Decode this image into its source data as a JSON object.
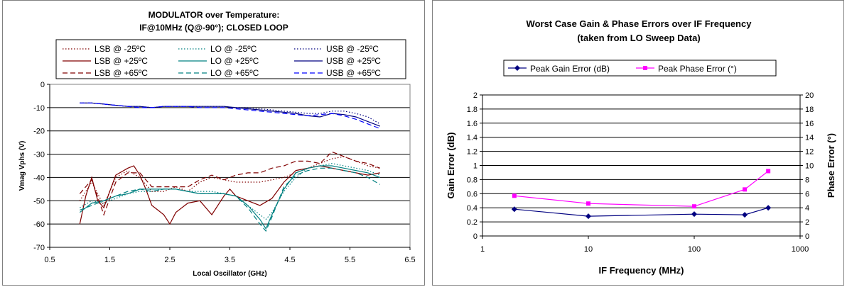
{
  "chart_data": [
    {
      "type": "line",
      "title": "MODULATOR over Temperature:",
      "subtitle": "IF@10MHz (Q@-90°); CLOSED LOOP",
      "xlabel": "Local Oscillator (GHz)",
      "ylabel": "Vmag Vphs (V)",
      "xlim": [
        0.5,
        6.5
      ],
      "ylim": [
        -70,
        0
      ],
      "xticks": [
        0.5,
        1.5,
        2.5,
        3.5,
        4.5,
        5.5,
        6.5
      ],
      "yticks": [
        0,
        -10,
        -20,
        -30,
        -40,
        -50,
        -60,
        -70
      ],
      "grid": "horizontal",
      "legend": "top",
      "series": [
        {
          "name": "LSB @ -25ºC",
          "color": "#800000",
          "dash": "dotted",
          "x": [
            1.0,
            1.2,
            1.4,
            1.6,
            1.8,
            2.0,
            2.2,
            2.4,
            2.6,
            2.8,
            3.0,
            3.2,
            3.4,
            3.6,
            3.8,
            4.0,
            4.2,
            4.4,
            4.6,
            4.8,
            5.0,
            5.2,
            5.4,
            5.6,
            5.8,
            6.0
          ],
          "y": [
            -50,
            -42,
            -52,
            -40,
            -37,
            -40,
            -46,
            -46,
            -44,
            -46,
            -42,
            -40,
            -41,
            -42,
            -42,
            -42,
            -41,
            -40,
            -38,
            -36,
            -34,
            -32,
            -31,
            -33,
            -35,
            -36
          ]
        },
        {
          "name": "LO @ -25ºC",
          "color": "#008080",
          "dash": "dotted",
          "x": [
            1.0,
            1.2,
            1.4,
            1.6,
            1.8,
            2.0,
            2.2,
            2.4,
            2.6,
            2.8,
            3.0,
            3.2,
            3.4,
            3.6,
            3.8,
            4.0,
            4.1,
            4.2,
            4.4,
            4.6,
            4.8,
            5.0,
            5.2,
            5.4,
            5.6,
            5.8,
            6.0
          ],
          "y": [
            -53,
            -50,
            -51,
            -49,
            -47,
            -46,
            -46,
            -45,
            -45,
            -46,
            -46,
            -46,
            -47,
            -48,
            -52,
            -56,
            -58,
            -55,
            -46,
            -40,
            -36,
            -35,
            -34,
            -35,
            -36,
            -37,
            -39
          ]
        },
        {
          "name": "USB @ -25ºC",
          "color": "#000080",
          "dash": "dotted",
          "x": [
            1.0,
            1.2,
            1.4,
            1.6,
            1.8,
            2.0,
            2.2,
            2.4,
            2.6,
            2.8,
            3.0,
            3.2,
            3.4,
            3.6,
            3.8,
            4.0,
            4.2,
            4.4,
            4.6,
            4.8,
            5.0,
            5.2,
            5.4,
            5.6,
            5.8,
            6.0
          ],
          "y": [
            -8,
            -8,
            -8.5,
            -9,
            -9.5,
            -9.5,
            -10,
            -9.5,
            -9.5,
            -9.5,
            -9.5,
            -9.5,
            -9.5,
            -10,
            -10,
            -10.5,
            -11,
            -11.5,
            -12,
            -12.5,
            -12.5,
            -11.5,
            -11.5,
            -12.5,
            -14,
            -17
          ]
        },
        {
          "name": "LSB @ +25ºC",
          "color": "#800000",
          "dash": "solid",
          "x": [
            1.0,
            1.1,
            1.2,
            1.3,
            1.4,
            1.5,
            1.6,
            1.8,
            1.9,
            2.0,
            2.1,
            2.2,
            2.3,
            2.4,
            2.5,
            2.6,
            2.8,
            3.0,
            3.2,
            3.4,
            3.5,
            3.6,
            3.8,
            4.0,
            4.2,
            4.4,
            4.6,
            4.8,
            5.0,
            5.2,
            5.4,
            5.6,
            5.8,
            6.0
          ],
          "y": [
            -60,
            -48,
            -40,
            -50,
            -53,
            -46,
            -39,
            -36,
            -35,
            -39,
            -45,
            -52,
            -54,
            -56,
            -60,
            -55,
            -51,
            -50,
            -56,
            -48,
            -45,
            -48,
            -50,
            -52,
            -49,
            -42,
            -37,
            -36,
            -35,
            -36,
            -37,
            -38,
            -39,
            -38
          ]
        },
        {
          "name": "LO @ +25ºC",
          "color": "#008080",
          "dash": "solid",
          "x": [
            1.0,
            1.2,
            1.4,
            1.6,
            1.8,
            2.0,
            2.2,
            2.4,
            2.6,
            2.8,
            3.0,
            3.2,
            3.4,
            3.6,
            3.8,
            4.0,
            4.1,
            4.2,
            4.4,
            4.6,
            4.8,
            5.0,
            5.2,
            5.4,
            5.6,
            5.8,
            6.0
          ],
          "y": [
            -55,
            -51,
            -50,
            -48,
            -47,
            -45,
            -45,
            -45,
            -45,
            -46,
            -47,
            -47,
            -47,
            -48,
            -52,
            -58,
            -62,
            -56,
            -45,
            -38,
            -36,
            -35,
            -35,
            -36,
            -37,
            -38,
            -40
          ]
        },
        {
          "name": "USB @ +25ºC",
          "color": "#000080",
          "dash": "solid",
          "x": [
            1.0,
            1.2,
            1.4,
            1.6,
            1.8,
            2.0,
            2.2,
            2.4,
            2.6,
            2.8,
            3.0,
            3.2,
            3.4,
            3.6,
            3.8,
            4.0,
            4.2,
            4.4,
            4.6,
            4.8,
            5.0,
            5.2,
            5.4,
            5.6,
            5.8,
            6.0
          ],
          "y": [
            -8,
            -8,
            -8.5,
            -9,
            -9.5,
            -9.5,
            -10,
            -9.5,
            -9.5,
            -9.5,
            -9.5,
            -9.5,
            -9.5,
            -10,
            -10.5,
            -11,
            -11.5,
            -12,
            -12.5,
            -13.5,
            -14,
            -12.5,
            -13,
            -14,
            -16,
            -18
          ]
        },
        {
          "name": "LSB @ +65ºC",
          "color": "#800000",
          "dash": "dashed",
          "x": [
            1.0,
            1.2,
            1.4,
            1.6,
            1.8,
            2.0,
            2.2,
            2.4,
            2.6,
            2.8,
            3.0,
            3.2,
            3.4,
            3.6,
            3.8,
            4.0,
            4.2,
            4.4,
            4.6,
            4.8,
            5.0,
            5.2,
            5.4,
            5.6,
            5.8,
            6.0
          ],
          "y": [
            -47,
            -41,
            -56,
            -42,
            -38,
            -38,
            -44,
            -44,
            -44,
            -44,
            -41,
            -39,
            -41,
            -39,
            -38,
            -38,
            -36,
            -35,
            -33,
            -33,
            -34,
            -29,
            -31,
            -33,
            -34,
            -36
          ]
        },
        {
          "name": "LO @ +65ºC",
          "color": "#008080",
          "dash": "dashed",
          "x": [
            1.0,
            1.2,
            1.4,
            1.6,
            1.8,
            2.0,
            2.2,
            2.4,
            2.6,
            2.8,
            3.0,
            3.2,
            3.4,
            3.6,
            3.8,
            4.0,
            4.1,
            4.2,
            4.4,
            4.6,
            4.8,
            5.0,
            5.2,
            5.4,
            5.6,
            5.8,
            6.0
          ],
          "y": [
            -54,
            -52,
            -50,
            -48,
            -46,
            -45,
            -46,
            -45,
            -45,
            -46,
            -47,
            -47,
            -47,
            -48,
            -53,
            -60,
            -63,
            -57,
            -44,
            -39,
            -37,
            -36,
            -36,
            -37,
            -38,
            -40,
            -43
          ]
        },
        {
          "name": "USB @ +65ºC",
          "color": "#0000ff",
          "dash": "dashed",
          "x": [
            1.0,
            1.2,
            1.4,
            1.6,
            1.8,
            2.0,
            2.2,
            2.4,
            2.6,
            2.8,
            3.0,
            3.2,
            3.4,
            3.6,
            3.8,
            4.0,
            4.2,
            4.4,
            4.6,
            4.8,
            5.0,
            5.2,
            5.4,
            5.6,
            5.8,
            6.0
          ],
          "y": [
            -8,
            -8,
            -8.5,
            -9,
            -9.5,
            -10,
            -10,
            -9.5,
            -9.5,
            -9.5,
            -10,
            -10,
            -10,
            -10.5,
            -11,
            -11.5,
            -12,
            -12.5,
            -13,
            -13.5,
            -13,
            -12.5,
            -13.5,
            -15,
            -17,
            -19
          ]
        }
      ]
    },
    {
      "type": "line",
      "title": "Worst Case Gain & Phase Errors over  IF Frequency",
      "subtitle": "(taken from LO Sweep Data)",
      "xlabel": "IF Frequency (MHz)",
      "ylabel": "Gain Error (dB)",
      "y2label": "Phase Error (°)",
      "xscale": "log",
      "xlim": [
        1,
        1000
      ],
      "ylim": [
        0,
        2
      ],
      "y2lim": [
        0,
        20
      ],
      "xticks": [
        "1",
        "10",
        "100",
        "1000"
      ],
      "yticks": [
        "0",
        "0.2",
        "0.4",
        "0.6",
        "0.8",
        "1",
        "1.2",
        "1.4",
        "1.6",
        "1.8",
        "2"
      ],
      "y2ticks": [
        "0",
        "2",
        "4",
        "6",
        "8",
        "10",
        "12",
        "14",
        "16",
        "18",
        "20"
      ],
      "grid": "horizontal",
      "legend": "top",
      "series": [
        {
          "name": "Peak Gain Error (dB)",
          "color": "#000080",
          "marker": "diamond",
          "axis": "left",
          "x": [
            2,
            10,
            100,
            300,
            500
          ],
          "y": [
            0.38,
            0.28,
            0.31,
            0.3,
            0.4
          ]
        },
        {
          "name": "Peak Phase Error (°)",
          "color": "#ff00ff",
          "marker": "square",
          "axis": "right",
          "x": [
            2,
            10,
            100,
            300,
            500
          ],
          "y": [
            5.7,
            4.6,
            4.2,
            6.6,
            9.2
          ]
        }
      ]
    }
  ]
}
